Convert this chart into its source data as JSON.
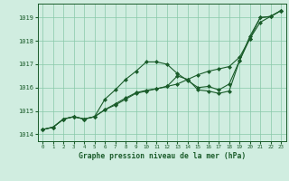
{
  "title": "Graphe pression niveau de la mer (hPa)",
  "background_color": "#d0ede0",
  "grid_color": "#88c8a8",
  "line_color": "#1a5c2a",
  "marker_color": "#1a5c2a",
  "xlim": [
    -0.5,
    23.5
  ],
  "ylim": [
    1013.7,
    1019.6
  ],
  "xticks": [
    0,
    1,
    2,
    3,
    4,
    5,
    6,
    7,
    8,
    9,
    10,
    11,
    12,
    13,
    14,
    15,
    16,
    17,
    18,
    19,
    20,
    21,
    22,
    23
  ],
  "yticks": [
    1014,
    1015,
    1016,
    1017,
    1018,
    1019
  ],
  "series": [
    {
      "x": [
        0,
        1,
        2,
        3,
        4,
        5,
        6,
        7,
        8,
        9,
        10,
        11,
        12,
        13,
        14,
        15,
        16,
        17,
        18,
        19,
        20,
        21,
        22,
        23
      ],
      "y": [
        1014.2,
        1014.3,
        1014.65,
        1014.75,
        1014.65,
        1014.75,
        1015.5,
        1015.9,
        1016.35,
        1016.7,
        1017.1,
        1017.1,
        1017.0,
        1016.6,
        1016.3,
        1016.0,
        1016.05,
        1015.9,
        1016.15,
        1017.15,
        1018.2,
        1019.0,
        1019.05,
        1019.3
      ]
    },
    {
      "x": [
        0,
        1,
        2,
        3,
        4,
        5,
        6,
        7,
        8,
        9,
        10,
        11,
        12,
        13,
        14,
        15,
        16,
        17,
        18,
        19,
        20,
        21,
        22,
        23
      ],
      "y": [
        1014.2,
        1014.3,
        1014.65,
        1014.75,
        1014.65,
        1014.75,
        1015.05,
        1015.3,
        1015.55,
        1015.78,
        1015.88,
        1015.95,
        1016.05,
        1016.15,
        1016.35,
        1016.55,
        1016.7,
        1016.8,
        1016.9,
        1017.3,
        1018.1,
        1018.8,
        1019.05,
        1019.3
      ]
    },
    {
      "x": [
        0,
        1,
        2,
        3,
        4,
        5,
        6,
        7,
        8,
        9,
        10,
        11,
        12,
        13,
        14,
        15,
        16,
        17,
        18,
        19,
        20,
        21,
        22,
        23
      ],
      "y": [
        1014.2,
        1014.3,
        1014.65,
        1014.75,
        1014.65,
        1014.75,
        1015.05,
        1015.25,
        1015.5,
        1015.75,
        1015.85,
        1015.95,
        1016.05,
        1016.5,
        1016.35,
        1015.9,
        1015.85,
        1015.75,
        1015.85,
        1017.15,
        1018.1,
        1019.0,
        1019.05,
        1019.3
      ]
    }
  ]
}
